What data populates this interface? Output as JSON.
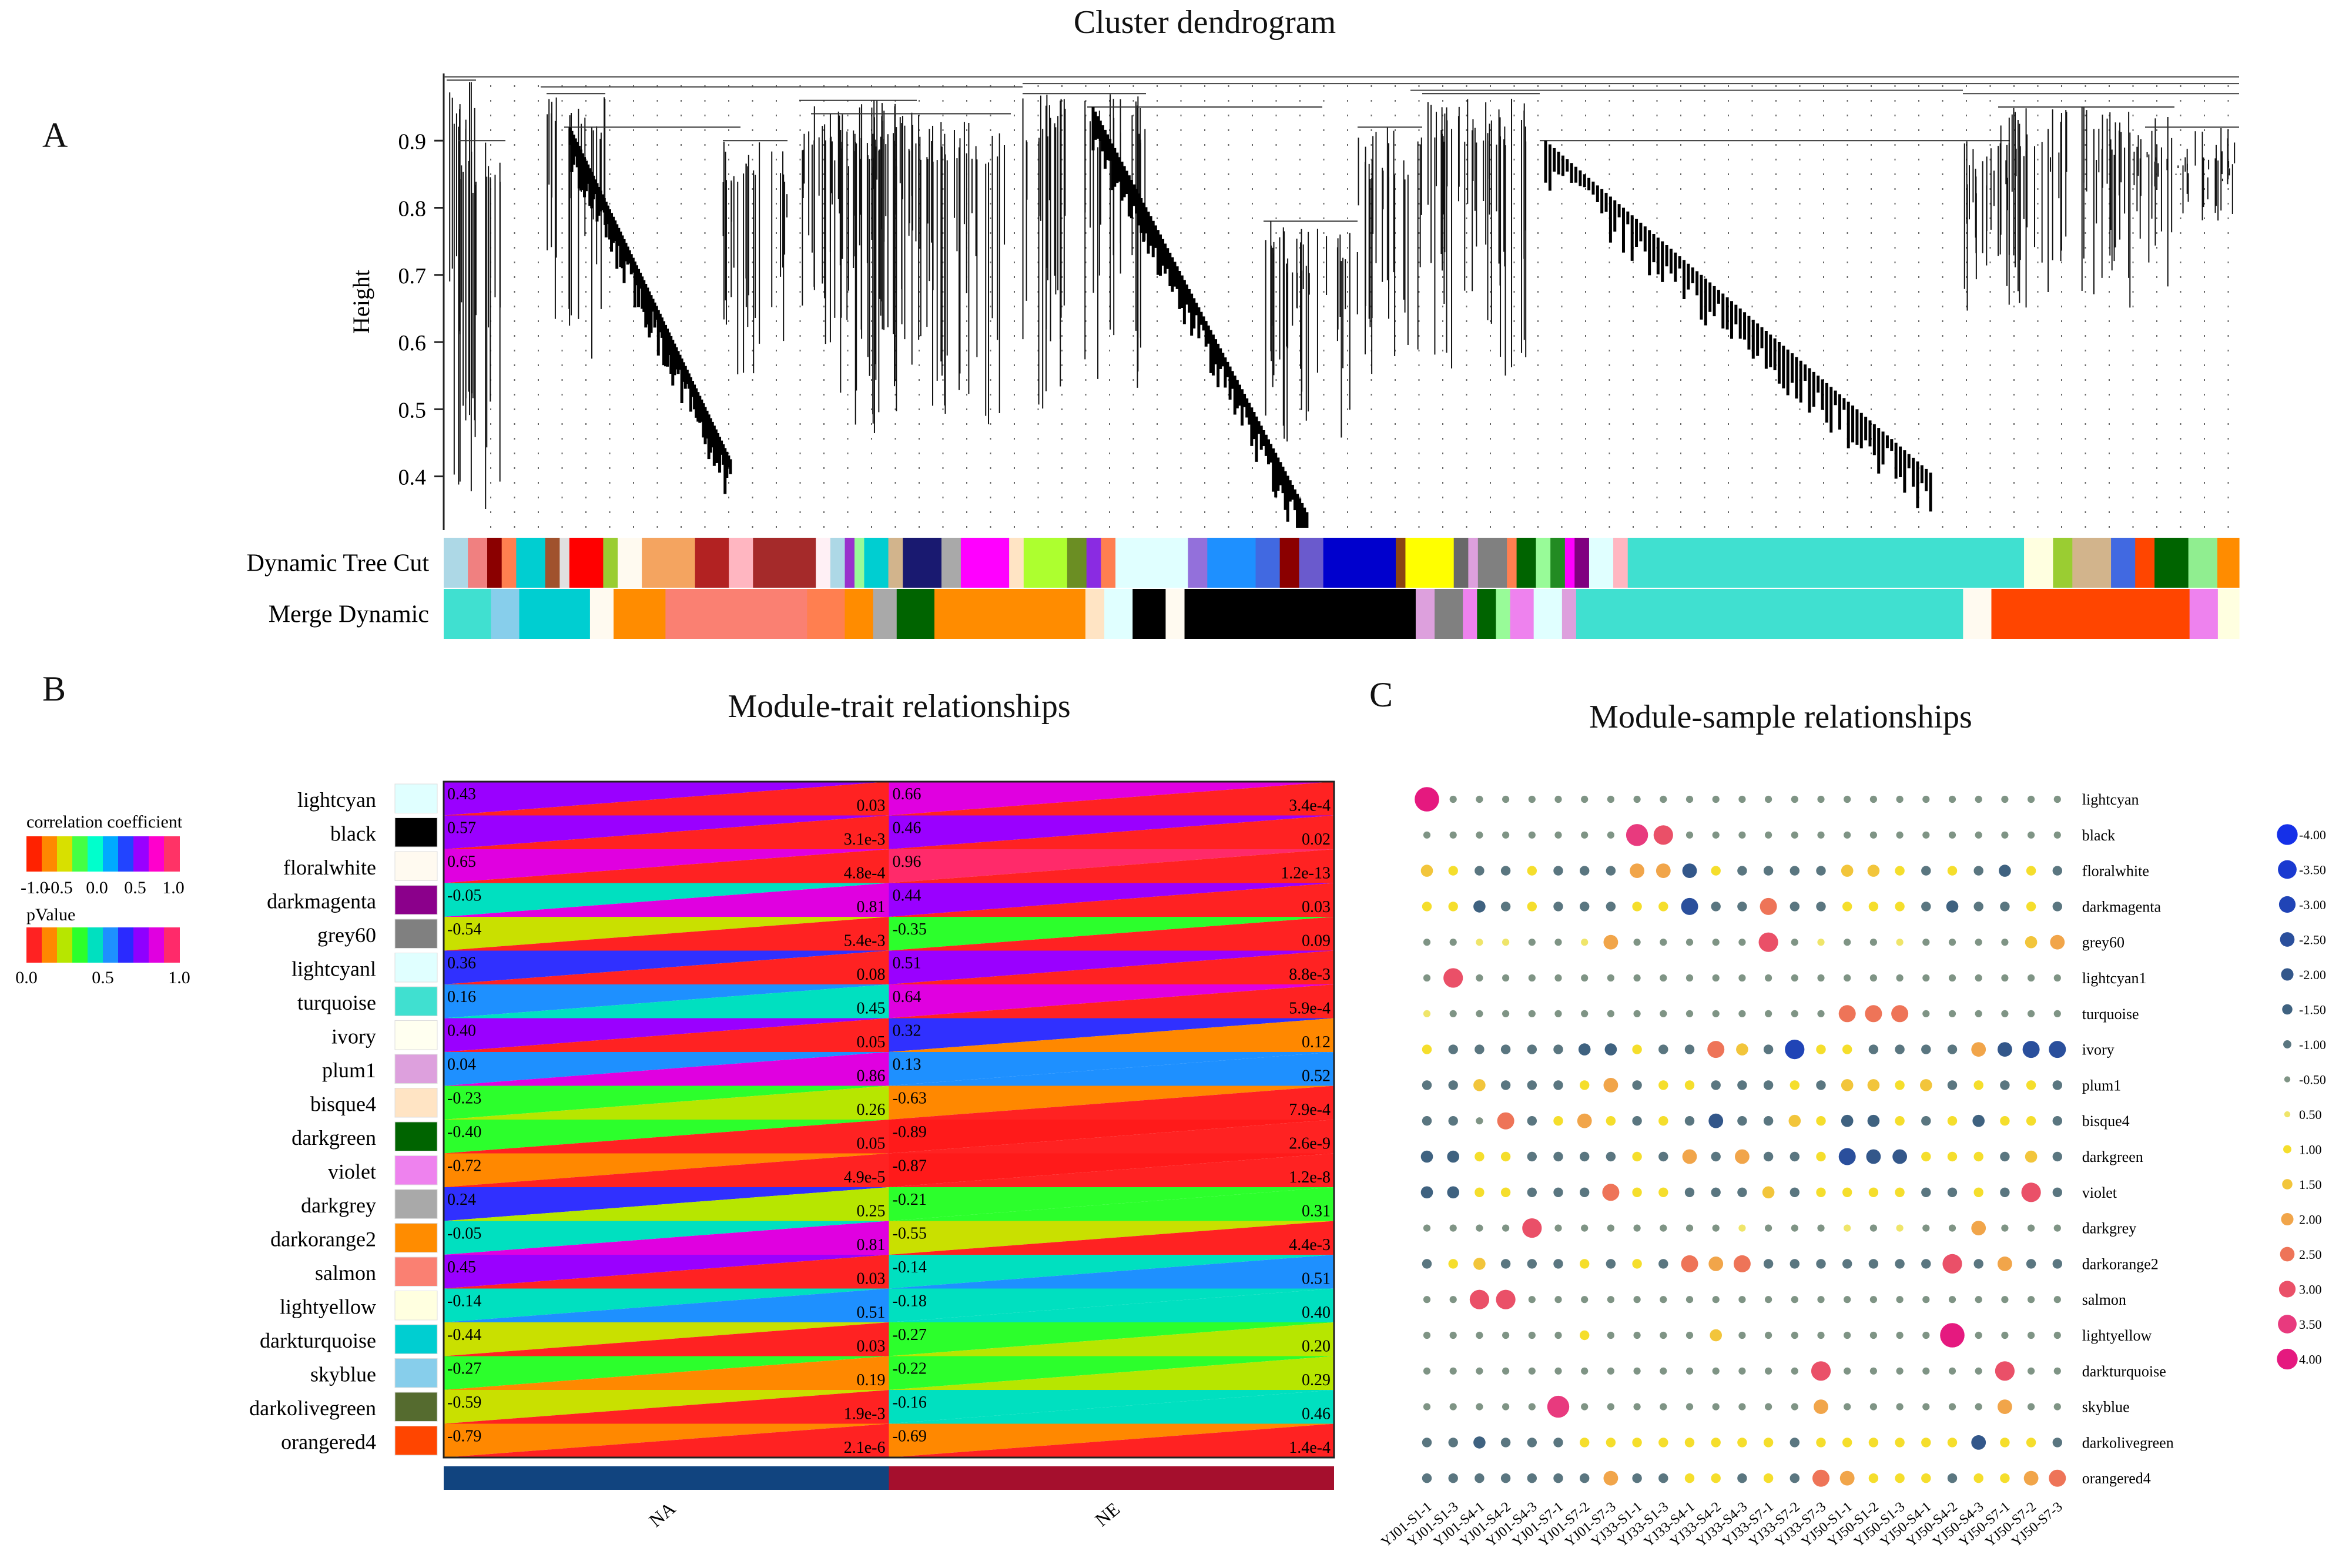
{
  "panels": {
    "a": {
      "letter": "A",
      "title": "Cluster dendrogram"
    },
    "b": {
      "letter": "B",
      "title": "Module-trait relationships"
    },
    "c": {
      "letter": "C",
      "title": "Module-sample relationships"
    }
  },
  "chart_data": [
    {
      "type": "dendrogram",
      "title": "Cluster dendrogram",
      "ylabel": "Height",
      "yticks": [
        "0.4",
        "0.5",
        "0.6",
        "0.7",
        "0.8",
        "0.9"
      ],
      "ylim": [
        0.32,
        1.0
      ],
      "rows": [
        "Dynamic Tree Cut",
        "Merge Dynamic"
      ],
      "dynamic_tree_cut": [
        [
          "#add8e6",
          0.01
        ],
        [
          "#f08080",
          0.008
        ],
        [
          "#8b0000",
          0.006
        ],
        [
          "#ff7f50",
          0.006
        ],
        [
          "#00ced1",
          0.012
        ],
        [
          "#a0522d",
          0.006
        ],
        [
          "#e0e0e0",
          0.004
        ],
        [
          "#ff0000",
          0.014
        ],
        [
          "#9acd32",
          0.006
        ],
        [
          "#fffaf0",
          0.01
        ],
        [
          "#f4a460",
          0.022
        ],
        [
          "#b22222",
          0.014
        ],
        [
          "#ffb6c1",
          0.01
        ],
        [
          "#a52a2a",
          0.026
        ],
        [
          "#fff0f5",
          0.006
        ],
        [
          "#add8e6",
          0.006
        ],
        [
          "#9932cc",
          0.004
        ],
        [
          "#98fb98",
          0.004
        ],
        [
          "#00ced1",
          0.01
        ],
        [
          "#d2b48c",
          0.006
        ],
        [
          "#191970",
          0.016
        ],
        [
          "#a9a9a9",
          0.008
        ],
        [
          "#ff00ff",
          0.02
        ],
        [
          "#ffe4c4",
          0.006
        ],
        [
          "#adff2f",
          0.018
        ],
        [
          "#6b8e23",
          0.008
        ],
        [
          "#8a2be2",
          0.006
        ],
        [
          "#ff7f50",
          0.006
        ],
        [
          "#e0ffff",
          0.03
        ],
        [
          "#9370db",
          0.008
        ],
        [
          "#1e90ff",
          0.02
        ],
        [
          "#4169e1",
          0.01
        ],
        [
          "#8b0000",
          0.008
        ],
        [
          "#6a5acd",
          0.01
        ],
        [
          "#0000cd",
          0.03
        ],
        [
          "#8b4513",
          0.004
        ],
        [
          "#ffff00",
          0.02
        ],
        [
          "#696969",
          0.006
        ],
        [
          "#dda0dd",
          0.004
        ],
        [
          "#808080",
          0.012
        ],
        [
          "#ff7f50",
          0.004
        ],
        [
          "#006400",
          0.008
        ],
        [
          "#98fb98",
          0.006
        ],
        [
          "#228b22",
          0.006
        ],
        [
          "#ff00ff",
          0.004
        ],
        [
          "#800080",
          0.006
        ],
        [
          "#e0ffff",
          0.01
        ],
        [
          "#ffb6c1",
          0.006
        ],
        [
          "#40e0d0",
          0.164
        ],
        [
          "#ffffe0",
          0.012
        ],
        [
          "#9acd32",
          0.008
        ],
        [
          "#d2b48c",
          0.016
        ],
        [
          "#4169e1",
          0.01
        ],
        [
          "#ff4500",
          0.008
        ],
        [
          "#006400",
          0.014
        ],
        [
          "#90ee90",
          0.012
        ],
        [
          "#ff8c00",
          0.009
        ]
      ],
      "merge_dynamic": [
        [
          "#40e0d0",
          0.02
        ],
        [
          "#87ceeb",
          0.012
        ],
        [
          "#00ced1",
          0.03
        ],
        [
          "#fffaf0",
          0.01
        ],
        [
          "#ff8c00",
          0.022
        ],
        [
          "#fa8072",
          0.06
        ],
        [
          "#ff7f50",
          0.016
        ],
        [
          "#ff8c00",
          0.012
        ],
        [
          "#a9a9a9",
          0.01
        ],
        [
          "#006400",
          0.016
        ],
        [
          "#ff8c00",
          0.064
        ],
        [
          "#ffe4c4",
          0.008
        ],
        [
          "#e0ffff",
          0.012
        ],
        [
          "#000000",
          0.014
        ],
        [
          "#fffaf0",
          0.008
        ],
        [
          "#000000",
          0.098
        ],
        [
          "#dda0dd",
          0.008
        ],
        [
          "#808080",
          0.012
        ],
        [
          "#ee82ee",
          0.006
        ],
        [
          "#006400",
          0.008
        ],
        [
          "#98fb98",
          0.006
        ],
        [
          "#ee82ee",
          0.01
        ],
        [
          "#e0ffff",
          0.012
        ],
        [
          "#dda0dd",
          0.006
        ],
        [
          "#40e0d0",
          0.164
        ],
        [
          "#fffaf0",
          0.012
        ],
        [
          "#ff4500",
          0.04
        ],
        [
          "#ff4500",
          0.044
        ],
        [
          "#ee82ee",
          0.012
        ],
        [
          "#ffffe0",
          0.009
        ]
      ]
    },
    {
      "type": "heatmap",
      "title": "Module-trait relationships",
      "modules": [
        "lightcyan",
        "black",
        "floralwhite",
        "darkmagenta",
        "grey60",
        "lightcyanl",
        "turquoise",
        "ivory",
        "plum1",
        "bisque4",
        "darkgreen",
        "violet",
        "darkgrey",
        "darkorange2",
        "salmon",
        "lightyellow",
        "darkturquoise",
        "skyblue",
        "darkolivegreen",
        "orangered4"
      ],
      "module_colors": [
        "#e0ffff",
        "#000000",
        "#fffaf0",
        "#8b008b",
        "#808080",
        "#e0ffff",
        "#40e0d0",
        "#fffff0",
        "#dda0dd",
        "#ffe4c4",
        "#006400",
        "#ee82ee",
        "#a9a9a9",
        "#ff8c00",
        "#fa8072",
        "#ffffe0",
        "#00ced1",
        "#87ceeb",
        "#556b2f",
        "#ff4500"
      ],
      "traits": [
        "NA",
        "NE"
      ],
      "trait_colors": [
        "#11447f",
        "#a50f2d"
      ],
      "correlations": [
        [
          "0.43",
          "0.66"
        ],
        [
          "0.57",
          "0.46"
        ],
        [
          "0.65",
          "0.96"
        ],
        [
          "-0.05",
          "0.44"
        ],
        [
          "-0.54",
          "-0.35"
        ],
        [
          "0.36",
          "0.51"
        ],
        [
          "0.16",
          "0.64"
        ],
        [
          "0.40",
          "0.32"
        ],
        [
          "0.04",
          "0.13"
        ],
        [
          "-0.23",
          "-0.63"
        ],
        [
          "-0.40",
          "-0.89"
        ],
        [
          "-0.72",
          "-0.87"
        ],
        [
          "0.24",
          "-0.21"
        ],
        [
          "-0.05",
          "-0.55"
        ],
        [
          "0.45",
          "-0.14"
        ],
        [
          "-0.14",
          "-0.18"
        ],
        [
          "-0.44",
          "-0.27"
        ],
        [
          "-0.27",
          "-0.22"
        ],
        [
          "-0.59",
          "-0.16"
        ],
        [
          "-0.79",
          "-0.69"
        ]
      ],
      "pvalues": [
        [
          "0.03",
          "3.4e-4"
        ],
        [
          "3.1e-3",
          "0.02"
        ],
        [
          "4.8e-4",
          "1.2e-13"
        ],
        [
          "0.81",
          "0.03"
        ],
        [
          "5.4e-3",
          "0.09"
        ],
        [
          "0.08",
          "8.8e-3"
        ],
        [
          "0.45",
          "5.9e-4"
        ],
        [
          "0.05",
          "0.12"
        ],
        [
          "0.86",
          "0.52"
        ],
        [
          "0.26",
          "7.9e-4"
        ],
        [
          "0.05",
          "2.6e-9"
        ],
        [
          "4.9e-5",
          "1.2e-8"
        ],
        [
          "0.25",
          "0.31"
        ],
        [
          "0.81",
          "4.4e-3"
        ],
        [
          "0.03",
          "0.51"
        ],
        [
          "0.51",
          "0.40"
        ],
        [
          "0.03",
          "0.20"
        ],
        [
          "0.19",
          "0.29"
        ],
        [
          "1.9e-3",
          "0.46"
        ],
        [
          "2.1e-6",
          "1.4e-4"
        ]
      ],
      "legend_corr_title": "correlation coefficient",
      "legend_corr_ticks": [
        "-1.0",
        "-0.5",
        "0.0",
        "0.5",
        "1.0"
      ],
      "legend_p_title": "pValue",
      "legend_p_ticks": [
        "0.0",
        "0.5",
        "1.0"
      ]
    },
    {
      "type": "scatter",
      "subtype": "bubble-matrix",
      "title": "Module-sample relationships",
      "modules": [
        "lightcyan",
        "black",
        "floralwhite",
        "darkmagenta",
        "grey60",
        "lightcyan1",
        "turquoise",
        "ivory",
        "plum1",
        "bisque4",
        "darkgreen",
        "violet",
        "darkgrey",
        "darkorange2",
        "salmon",
        "lightyellow",
        "darkturquoise",
        "skyblue",
        "darkolivegreen",
        "orangered4"
      ],
      "samples": [
        "YJ01-S1-1",
        "YJ01-S1-3",
        "YJ01-S4-1",
        "YJ01-S4-2",
        "YJ01-S4-3",
        "YJ01-S7-1",
        "YJ01-S7-2",
        "YJ01-S7-3",
        "YJ33-S1-1",
        "YJ33-S1-3",
        "YJ33-S4-1",
        "YJ33-S4-2",
        "YJ33-S4-3",
        "YJ33-S7-1",
        "YJ33-S7-2",
        "YJ33-S7-3",
        "YJ50-S1-1",
        "YJ50-S1-2",
        "YJ50-S1-3",
        "YJ50-S4-1",
        "YJ50-S4-2",
        "YJ50-S4-3",
        "YJ50-S7-1",
        "YJ50-S7-2",
        "YJ50-S7-3"
      ],
      "values": [
        [
          4.0,
          -0.5,
          -0.5,
          -0.5,
          -0.5,
          -0.5,
          -0.5,
          -0.5,
          -0.5,
          -0.5,
          -0.5,
          -0.5,
          -0.5,
          -0.5,
          -0.5,
          -0.5,
          -0.5,
          -0.5,
          -0.5,
          -0.5,
          -0.5,
          -0.5,
          -0.5,
          -0.5,
          -0.5
        ],
        [
          -0.5,
          -0.5,
          -0.5,
          -0.5,
          -0.5,
          -0.5,
          -0.5,
          -0.5,
          3.5,
          3.0,
          -0.5,
          -0.5,
          -0.5,
          -0.5,
          -0.5,
          -0.5,
          -0.5,
          -0.5,
          -0.5,
          -0.5,
          -0.5,
          -0.5,
          -0.5,
          -0.5,
          -0.5
        ],
        [
          1.5,
          1.0,
          -1.0,
          -1.0,
          1.0,
          -1.0,
          -1.0,
          -1.0,
          2.0,
          2.0,
          -2.0,
          1.0,
          -1.0,
          -1.0,
          -1.0,
          -1.0,
          1.5,
          1.5,
          1.0,
          -1.0,
          1.0,
          -1.0,
          -1.5,
          1.0,
          -1.0
        ],
        [
          1.0,
          1.0,
          -1.5,
          -1.0,
          1.0,
          -1.0,
          -1.0,
          -1.0,
          1.0,
          1.0,
          -2.5,
          -1.0,
          -1.0,
          2.5,
          -1.0,
          -1.0,
          1.0,
          1.0,
          1.0,
          -1.0,
          -1.5,
          -1.0,
          -1.0,
          1.0,
          -1.0
        ],
        [
          -0.5,
          -0.5,
          0.5,
          0.5,
          -0.5,
          -0.5,
          0.5,
          2.0,
          -0.5,
          -0.5,
          -0.5,
          -0.5,
          -0.5,
          3.0,
          -0.5,
          0.5,
          -0.5,
          -0.5,
          0.5,
          -0.5,
          -0.5,
          -0.5,
          -0.5,
          1.5,
          2.0
        ],
        [
          -0.5,
          3.0,
          -0.5,
          -0.5,
          -0.5,
          -0.5,
          -0.5,
          -0.5,
          -0.5,
          -0.5,
          -0.5,
          -0.5,
          -0.5,
          -0.5,
          -0.5,
          -0.5,
          -0.5,
          -0.5,
          -0.5,
          -0.5,
          -0.5,
          -0.5,
          -0.5,
          -0.5,
          -0.5
        ],
        [
          0.5,
          -0.5,
          -0.5,
          -0.5,
          -0.5,
          -0.5,
          -0.5,
          -0.5,
          -0.5,
          -0.5,
          -0.5,
          -0.5,
          -0.5,
          -0.5,
          -0.5,
          -0.5,
          2.5,
          2.5,
          2.5,
          -0.5,
          -0.5,
          -0.5,
          -0.5,
          -0.5,
          -0.5
        ],
        [
          1.0,
          -1.0,
          -1.0,
          -1.0,
          -1.0,
          -1.0,
          -1.5,
          -1.5,
          1.0,
          -1.0,
          -1.0,
          2.5,
          1.5,
          -1.0,
          -3.0,
          1.0,
          1.0,
          -1.0,
          -1.0,
          -1.0,
          -1.0,
          2.0,
          -2.0,
          -2.5,
          -2.5
        ],
        [
          -1.0,
          -1.0,
          1.5,
          -1.0,
          -1.0,
          -1.0,
          1.0,
          2.0,
          -1.0,
          1.0,
          1.0,
          -1.0,
          -1.0,
          -1.0,
          1.0,
          -1.0,
          1.5,
          1.5,
          1.0,
          1.5,
          -1.0,
          1.0,
          -1.0,
          1.0,
          -1.0
        ],
        [
          -1.0,
          -1.0,
          -0.5,
          2.5,
          -1.0,
          1.0,
          2.0,
          1.0,
          -1.0,
          1.0,
          -1.0,
          -2.0,
          -1.0,
          -1.0,
          1.5,
          1.0,
          -1.5,
          -1.5,
          1.0,
          -1.0,
          1.0,
          -1.5,
          1.0,
          1.0,
          -1.0
        ],
        [
          -1.5,
          -1.5,
          1.0,
          1.0,
          -1.0,
          -1.0,
          -1.0,
          -1.0,
          1.0,
          -1.0,
          2.0,
          -1.0,
          2.0,
          -1.0,
          -1.0,
          1.0,
          -2.5,
          -2.0,
          -2.0,
          1.0,
          1.0,
          1.0,
          -1.0,
          1.5,
          -1.0
        ],
        [
          -1.5,
          -1.5,
          1.0,
          1.0,
          -1.0,
          -1.0,
          -1.0,
          2.5,
          1.0,
          1.0,
          -1.0,
          -1.0,
          -1.0,
          1.5,
          -1.0,
          1.0,
          1.0,
          1.0,
          1.0,
          -1.0,
          -1.0,
          1.0,
          -1.0,
          3.0,
          -1.0
        ],
        [
          -0.5,
          -0.5,
          -0.5,
          -0.5,
          3.0,
          -0.5,
          -0.5,
          -0.5,
          -0.5,
          -0.5,
          -0.5,
          -0.5,
          0.5,
          -0.5,
          -0.5,
          -0.5,
          0.5,
          -0.5,
          0.5,
          -0.5,
          -0.5,
          2.0,
          -0.5,
          -0.5,
          -0.5
        ],
        [
          -1.0,
          1.0,
          1.5,
          -1.0,
          -1.0,
          -1.0,
          1.0,
          -1.0,
          1.0,
          -1.0,
          2.5,
          2.0,
          2.5,
          -1.0,
          -1.0,
          -1.0,
          -1.0,
          -1.0,
          -1.0,
          -1.0,
          3.0,
          -1.0,
          2.0,
          -1.0,
          -1.0
        ],
        [
          -0.5,
          -0.5,
          3.0,
          3.0,
          -0.5,
          -0.5,
          -0.5,
          -0.5,
          -0.5,
          -0.5,
          -0.5,
          -0.5,
          -0.5,
          -0.5,
          -0.5,
          -0.5,
          -0.5,
          -0.5,
          -0.5,
          -0.5,
          -0.5,
          -0.5,
          -0.5,
          -0.5,
          -0.5
        ],
        [
          -0.5,
          -0.5,
          -0.5,
          -0.5,
          -0.5,
          -0.5,
          1.0,
          -0.5,
          -0.5,
          -0.5,
          -0.5,
          1.5,
          -0.5,
          -0.5,
          -0.5,
          -0.5,
          -0.5,
          -0.5,
          -0.5,
          -0.5,
          4.0,
          -0.5,
          -0.5,
          -0.5,
          -0.5
        ],
        [
          -0.5,
          -0.5,
          -0.5,
          -0.5,
          -0.5,
          -0.5,
          -0.5,
          -0.5,
          -0.5,
          -0.5,
          -0.5,
          -0.5,
          -0.5,
          -0.5,
          -0.5,
          3.0,
          -0.5,
          -0.5,
          -0.5,
          -0.5,
          -0.5,
          -0.5,
          3.0,
          -0.5,
          -0.5
        ],
        [
          -0.5,
          -0.5,
          -0.5,
          -0.5,
          -0.5,
          3.5,
          -0.5,
          -0.5,
          -0.5,
          -0.5,
          -0.5,
          -0.5,
          -0.5,
          -0.5,
          -0.5,
          2.0,
          -0.5,
          -0.5,
          -0.5,
          -0.5,
          -0.5,
          -0.5,
          2.0,
          -0.5,
          -0.5
        ],
        [
          -1.0,
          -1.0,
          -1.5,
          -1.0,
          -1.0,
          -1.0,
          1.0,
          1.0,
          1.0,
          1.0,
          1.0,
          1.0,
          1.0,
          1.0,
          -1.0,
          1.0,
          1.0,
          1.0,
          1.0,
          1.0,
          1.0,
          -2.0,
          1.0,
          1.0,
          -1.0
        ],
        [
          -1.0,
          -1.0,
          -1.0,
          -1.0,
          -1.0,
          -1.0,
          -1.0,
          2.0,
          -1.0,
          -1.0,
          1.0,
          1.0,
          -1.0,
          1.0,
          -1.0,
          2.5,
          2.0,
          1.0,
          1.0,
          1.0,
          -1.0,
          1.0,
          1.0,
          2.0,
          2.5
        ]
      ],
      "legend_values": [
        "-4.00",
        "-3.50",
        "-3.00",
        "-2.50",
        "-2.00",
        "-1.50",
        "-1.00",
        "-0.50",
        "0.50",
        "1.00",
        "1.50",
        "2.00",
        "2.50",
        "3.00",
        "3.50",
        "4.00"
      ]
    }
  ]
}
